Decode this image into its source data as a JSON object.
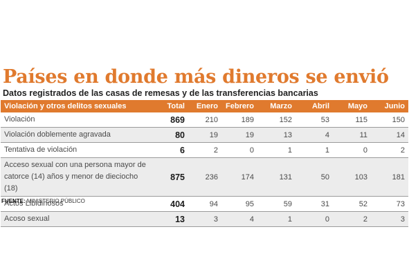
{
  "title": "Países en donde más dineros se envió",
  "subtitle": "Datos registrados de las casas de remesas y de las transferencias bancarias",
  "table": {
    "headers": [
      "Violación y otros delitos sexuales",
      "Total",
      "Enero",
      "Febrero",
      "Marzo",
      "Abril",
      "Mayo",
      "Junio"
    ],
    "rows": [
      {
        "label": [
          "Violación"
        ],
        "total": "869",
        "values": [
          "210",
          "189",
          "152",
          "53",
          "115",
          "150"
        ]
      },
      {
        "label": [
          "Violación doblemente agravada"
        ],
        "total": "80",
        "values": [
          "19",
          "19",
          "13",
          "4",
          "11",
          "14"
        ]
      },
      {
        "label": [
          "Tentativa de violación"
        ],
        "total": "6",
        "values": [
          "2",
          "0",
          "1",
          "1",
          "0",
          "2"
        ]
      },
      {
        "label": [
          "Acceso sexual con una persona mayor de",
          "catorce (14) años y menor de dieciocho (18)"
        ],
        "total": "875",
        "values": [
          "236",
          "174",
          "131",
          "50",
          "103",
          "181"
        ]
      },
      {
        "label": [
          "Actos Libidinosos"
        ],
        "total": "404",
        "values": [
          "94",
          "95",
          "59",
          "31",
          "52",
          "73"
        ]
      },
      {
        "label": [
          "Acoso sexual"
        ],
        "total": "13",
        "values": [
          "3",
          "4",
          "1",
          "0",
          "2",
          "3"
        ]
      }
    ]
  },
  "source": {
    "label": "FUENTE:",
    "text": " MINISTERIO PÚBLICO"
  }
}
